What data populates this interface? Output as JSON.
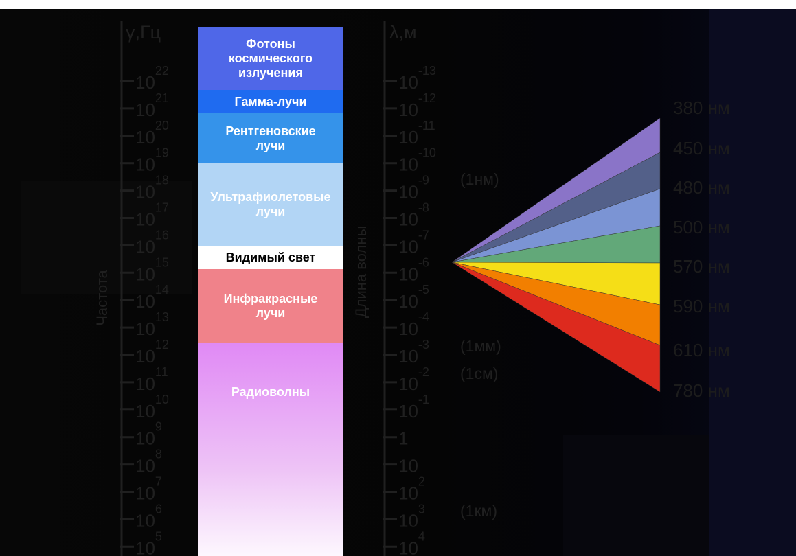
{
  "frequency_axis": {
    "unit_label": "γ,Гц",
    "title": "Частота",
    "ticks": [
      {
        "base": "10",
        "exp": "22"
      },
      {
        "base": "10",
        "exp": "21"
      },
      {
        "base": "10",
        "exp": "20"
      },
      {
        "base": "10",
        "exp": "19"
      },
      {
        "base": "10",
        "exp": "18"
      },
      {
        "base": "10",
        "exp": "17"
      },
      {
        "base": "10",
        "exp": "16"
      },
      {
        "base": "10",
        "exp": "15"
      },
      {
        "base": "10",
        "exp": "14"
      },
      {
        "base": "10",
        "exp": "13"
      },
      {
        "base": "10",
        "exp": "12"
      },
      {
        "base": "10",
        "exp": "11"
      },
      {
        "base": "10",
        "exp": "10"
      },
      {
        "base": "10",
        "exp": "9"
      },
      {
        "base": "10",
        "exp": "8"
      },
      {
        "base": "10",
        "exp": "7"
      },
      {
        "base": "10",
        "exp": "6"
      },
      {
        "base": "10",
        "exp": "5"
      }
    ]
  },
  "wavelength_axis": {
    "unit_label": "λ,м",
    "title": "Длина волны",
    "ticks": [
      {
        "base": "10",
        "exp": "-13"
      },
      {
        "base": "10",
        "exp": "-12"
      },
      {
        "base": "10",
        "exp": "-11"
      },
      {
        "base": "10",
        "exp": "-10"
      },
      {
        "base": "10",
        "exp": "-9"
      },
      {
        "base": "10",
        "exp": "-8"
      },
      {
        "base": "10",
        "exp": "-7"
      },
      {
        "base": "10",
        "exp": "-6"
      },
      {
        "base": "10",
        "exp": "-5"
      },
      {
        "base": "10",
        "exp": "-4"
      },
      {
        "base": "10",
        "exp": "-3"
      },
      {
        "base": "10",
        "exp": "-2"
      },
      {
        "base": "10",
        "exp": "-1"
      },
      {
        "base": "1",
        "exp": ""
      },
      {
        "base": "10",
        "exp": ""
      },
      {
        "base": "10",
        "exp": "2"
      },
      {
        "base": "10",
        "exp": "3"
      },
      {
        "base": "10",
        "exp": "4"
      }
    ],
    "annotations": [
      "(1нм)",
      "(1мм)",
      "(1см)",
      "(1км)"
    ]
  },
  "bands": {
    "cosmic": "Фотоны\nкосмического\nизлучения",
    "gamma": "Гамма-лучи",
    "xray": "Рентгеновские\nлучи",
    "uv": "Ультрафиолетовые\nлучи",
    "visible": "Видимый свет",
    "ir": "Инфракрасные\nлучи",
    "radio": "Радиоволны"
  },
  "visible_spectrum": {
    "boundary_labels": [
      "380 нм",
      "450 нм",
      "480 нм",
      "500 нм",
      "570 нм",
      "590 нм",
      "610 нм",
      "780 нм"
    ],
    "segment_colors": [
      "#8a74c8",
      "#536089",
      "#7b94d4",
      "#62a879",
      "#f5de17",
      "#f27f00",
      "#dd2a1e"
    ]
  },
  "colors": {
    "background": "#070707",
    "axis_text": "#202020",
    "spectrum_label": "#1c1c1c"
  }
}
